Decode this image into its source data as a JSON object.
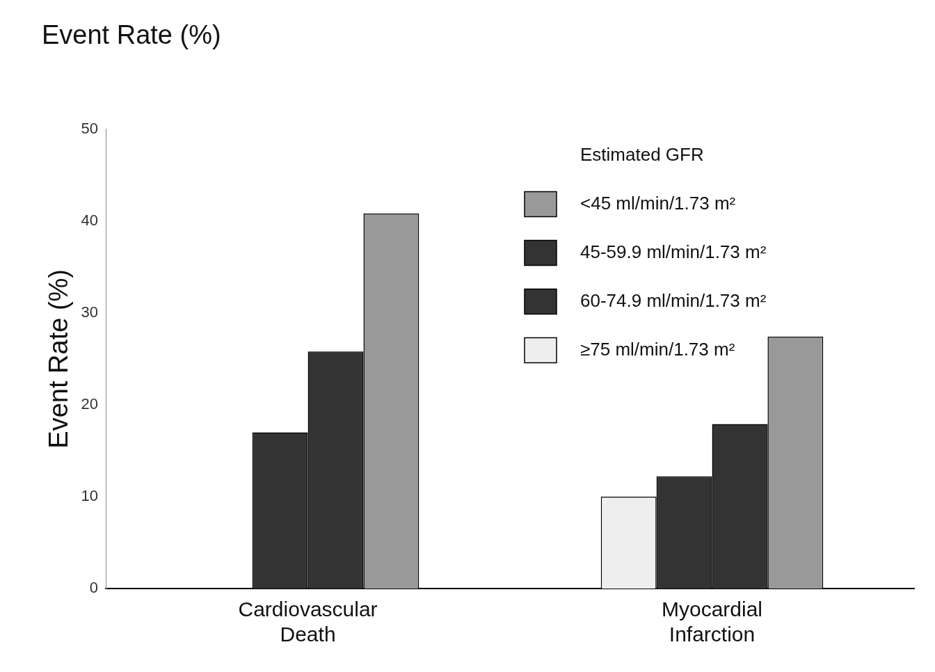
{
  "chart_data": {
    "type": "bar",
    "title": "Event Rate (%)",
    "ylabel": "Event Rate (%)",
    "legend_title": "Estimated GFR",
    "categories": [
      "Cardiovascular Death",
      "Myocardial Infarction"
    ],
    "series": [
      {
        "name": "≥75 ml/min/1.73 m²",
        "color": "#eeeeee",
        "values": [
          null,
          10
        ]
      },
      {
        "name": "60-74.9 ml/min/1.73 m²",
        "color": "#333333",
        "values": [
          17,
          12.2
        ]
      },
      {
        "name": "45-59.9 ml/min/1.73 m²",
        "color": "#333333",
        "values": [
          25.8,
          17.9
        ]
      },
      {
        "name": "<45 ml/min/1.73 m²",
        "color": "#999999",
        "values": [
          40.8,
          27.4
        ]
      }
    ],
    "ylim": [
      0,
      50
    ],
    "yticks": [
      0,
      10,
      20,
      30,
      40,
      50
    ],
    "grid": false,
    "legend": "top right"
  }
}
